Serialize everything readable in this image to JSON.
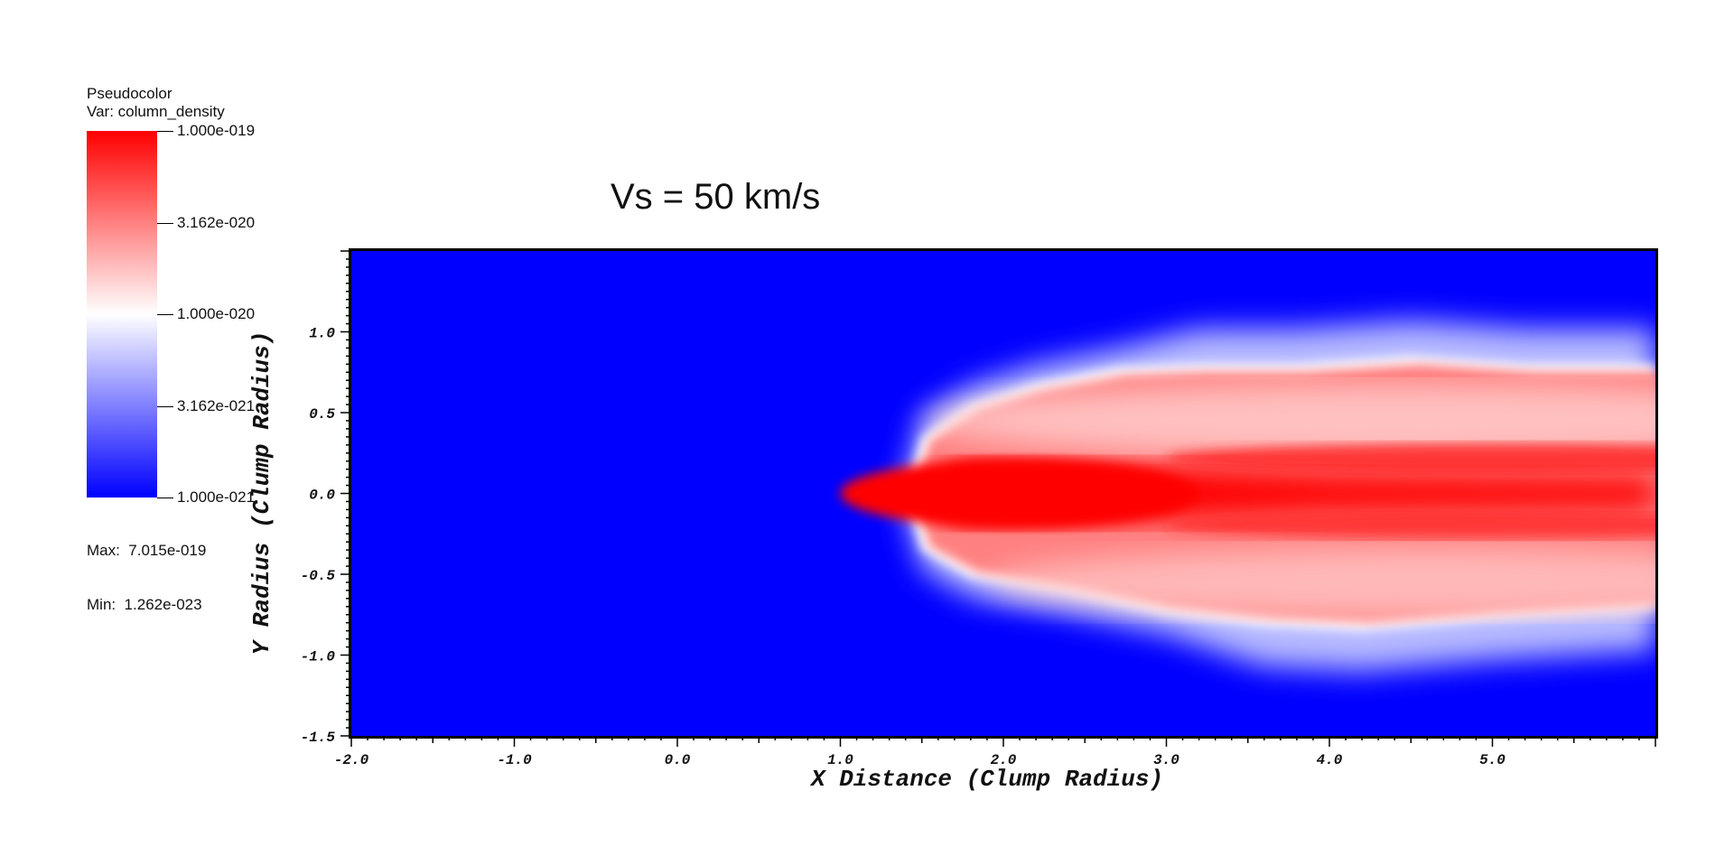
{
  "chart_data": {
    "type": "heatmap",
    "title": "Vs = 50 km/s",
    "xlabel": "X Distance (Clump Radius)",
    "ylabel": "Y Radius (Clump Radius)",
    "xlim": [
      -2.0,
      6.0
    ],
    "ylim": [
      -1.5,
      1.5
    ],
    "x_ticks": [
      "-2.0",
      "-1.0",
      "0.0",
      "1.0",
      "2.0",
      "3.0",
      "4.0",
      "5.0"
    ],
    "x_tick_values": [
      -2.0,
      -1.0,
      0.0,
      1.0,
      2.0,
      3.0,
      4.0,
      5.0
    ],
    "y_ticks": [
      "-1.5",
      "-1.0",
      "-0.5",
      "0.0",
      "0.5",
      "1.0"
    ],
    "y_tick_values": [
      -1.5,
      -1.0,
      -0.5,
      0.0,
      0.5,
      1.0
    ],
    "colorbar": {
      "header": [
        "Pseudocolor",
        "Var: column_density"
      ],
      "scale": "log",
      "min": 1e-21,
      "max": 1e-19,
      "tick_labels": [
        "1.000e-019",
        "3.162e-020",
        "1.000e-020",
        "3.162e-021",
        "1.000e-021"
      ],
      "tick_values": [
        1e-19,
        3.162e-20,
        1e-20,
        3.162e-21,
        1e-21
      ],
      "colors": {
        "high": "#ff0000",
        "mid": "#ffffff",
        "low": "#0000ff"
      }
    },
    "stats": {
      "max_label": "Max:  7.015e-019",
      "min_label": "Min:  1.262e-023"
    },
    "features": {
      "head_x": 1.4,
      "outer_envelope": [
        [
          1.4,
          0.0
        ],
        [
          1.5,
          0.35
        ],
        [
          1.8,
          0.55
        ],
        [
          2.2,
          0.68
        ],
        [
          2.7,
          0.78
        ],
        [
          3.2,
          0.8
        ],
        [
          3.8,
          0.8
        ],
        [
          4.5,
          0.85
        ],
        [
          5.2,
          0.8
        ],
        [
          6.0,
          0.8
        ]
      ],
      "inner_envelope_lower": [
        [
          1.4,
          0.0
        ],
        [
          1.5,
          -0.35
        ],
        [
          1.8,
          -0.52
        ],
        [
          2.4,
          -0.62
        ],
        [
          3.0,
          -0.75
        ],
        [
          3.6,
          -0.82
        ],
        [
          4.2,
          -0.85
        ],
        [
          5.0,
          -0.78
        ],
        [
          6.0,
          -0.72
        ]
      ],
      "core_halfwidth_front": 0.2,
      "core_halfwidth_back": 0.1
    }
  }
}
